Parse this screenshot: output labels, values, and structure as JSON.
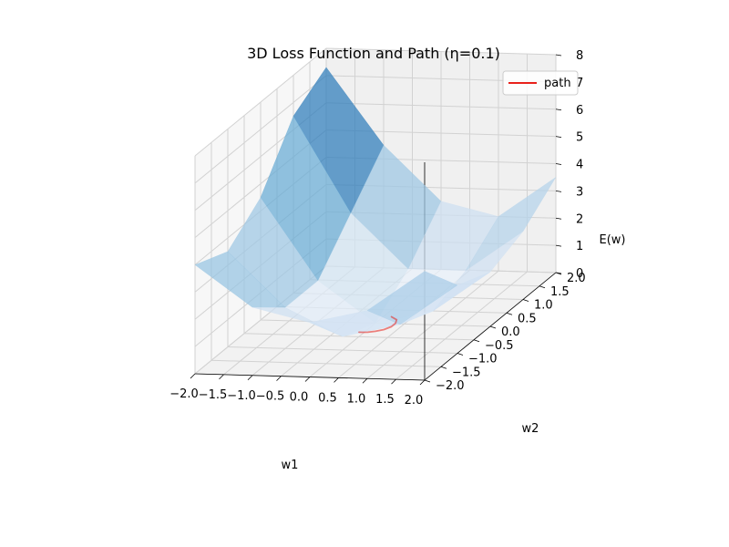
{
  "chart_data": {
    "type": "surface3d",
    "title": "3D Loss Function and Path (η=0.1)",
    "xlabel": "w1",
    "ylabel": "w2",
    "zlabel": "E(w)",
    "xlim": [
      -2.0,
      2.0
    ],
    "ylim": [
      -2.0,
      2.0
    ],
    "zlim": [
      0,
      8
    ],
    "x_ticks": [
      "−2.0",
      "−1.5",
      "−1.0",
      "−0.5",
      "0.0",
      "0.5",
      "1.0",
      "1.5",
      "2.0"
    ],
    "y_ticks": [
      "−2.0",
      "−1.5",
      "−1.0",
      "−0.5",
      "0.0",
      "0.5",
      "1.0",
      "1.5",
      "2.0"
    ],
    "z_ticks": [
      "0",
      "1",
      "2",
      "3",
      "4",
      "5",
      "6",
      "7",
      "8"
    ],
    "grid": true,
    "legend": {
      "placement": "top-right",
      "entries": [
        {
          "name": "path",
          "color": "#e8201a"
        }
      ]
    },
    "surface": {
      "x": [
        -2.0,
        -1.0,
        0.0,
        1.0,
        2.0
      ],
      "y": [
        -2.0,
        -1.0,
        0.0,
        1.0,
        2.0
      ],
      "z": [
        [
          4.0,
          2.5,
          2.0,
          2.5,
          4.0
        ],
        [
          3.5,
          1.5,
          0.5,
          1.0,
          2.5
        ],
        [
          4.5,
          1.5,
          0.0,
          0.5,
          2.0
        ],
        [
          6.5,
          3.0,
          1.0,
          1.0,
          2.5
        ],
        [
          7.3,
          4.5,
          2.5,
          2.0,
          3.5
        ]
      ],
      "colormap": "Blues"
    },
    "series": [
      {
        "name": "path",
        "color": "#e8201a",
        "x": [
          0.25,
          0.38,
          0.42,
          0.4,
          0.32,
          0.2,
          0.08,
          -0.02,
          -0.08
        ],
        "y": [
          0.05,
          -0.02,
          -0.12,
          -0.22,
          -0.3,
          -0.35,
          -0.37,
          -0.37,
          -0.36
        ],
        "z": [
          0.2,
          0.17,
          0.14,
          0.11,
          0.08,
          0.06,
          0.04,
          0.03,
          0.02
        ]
      }
    ]
  }
}
